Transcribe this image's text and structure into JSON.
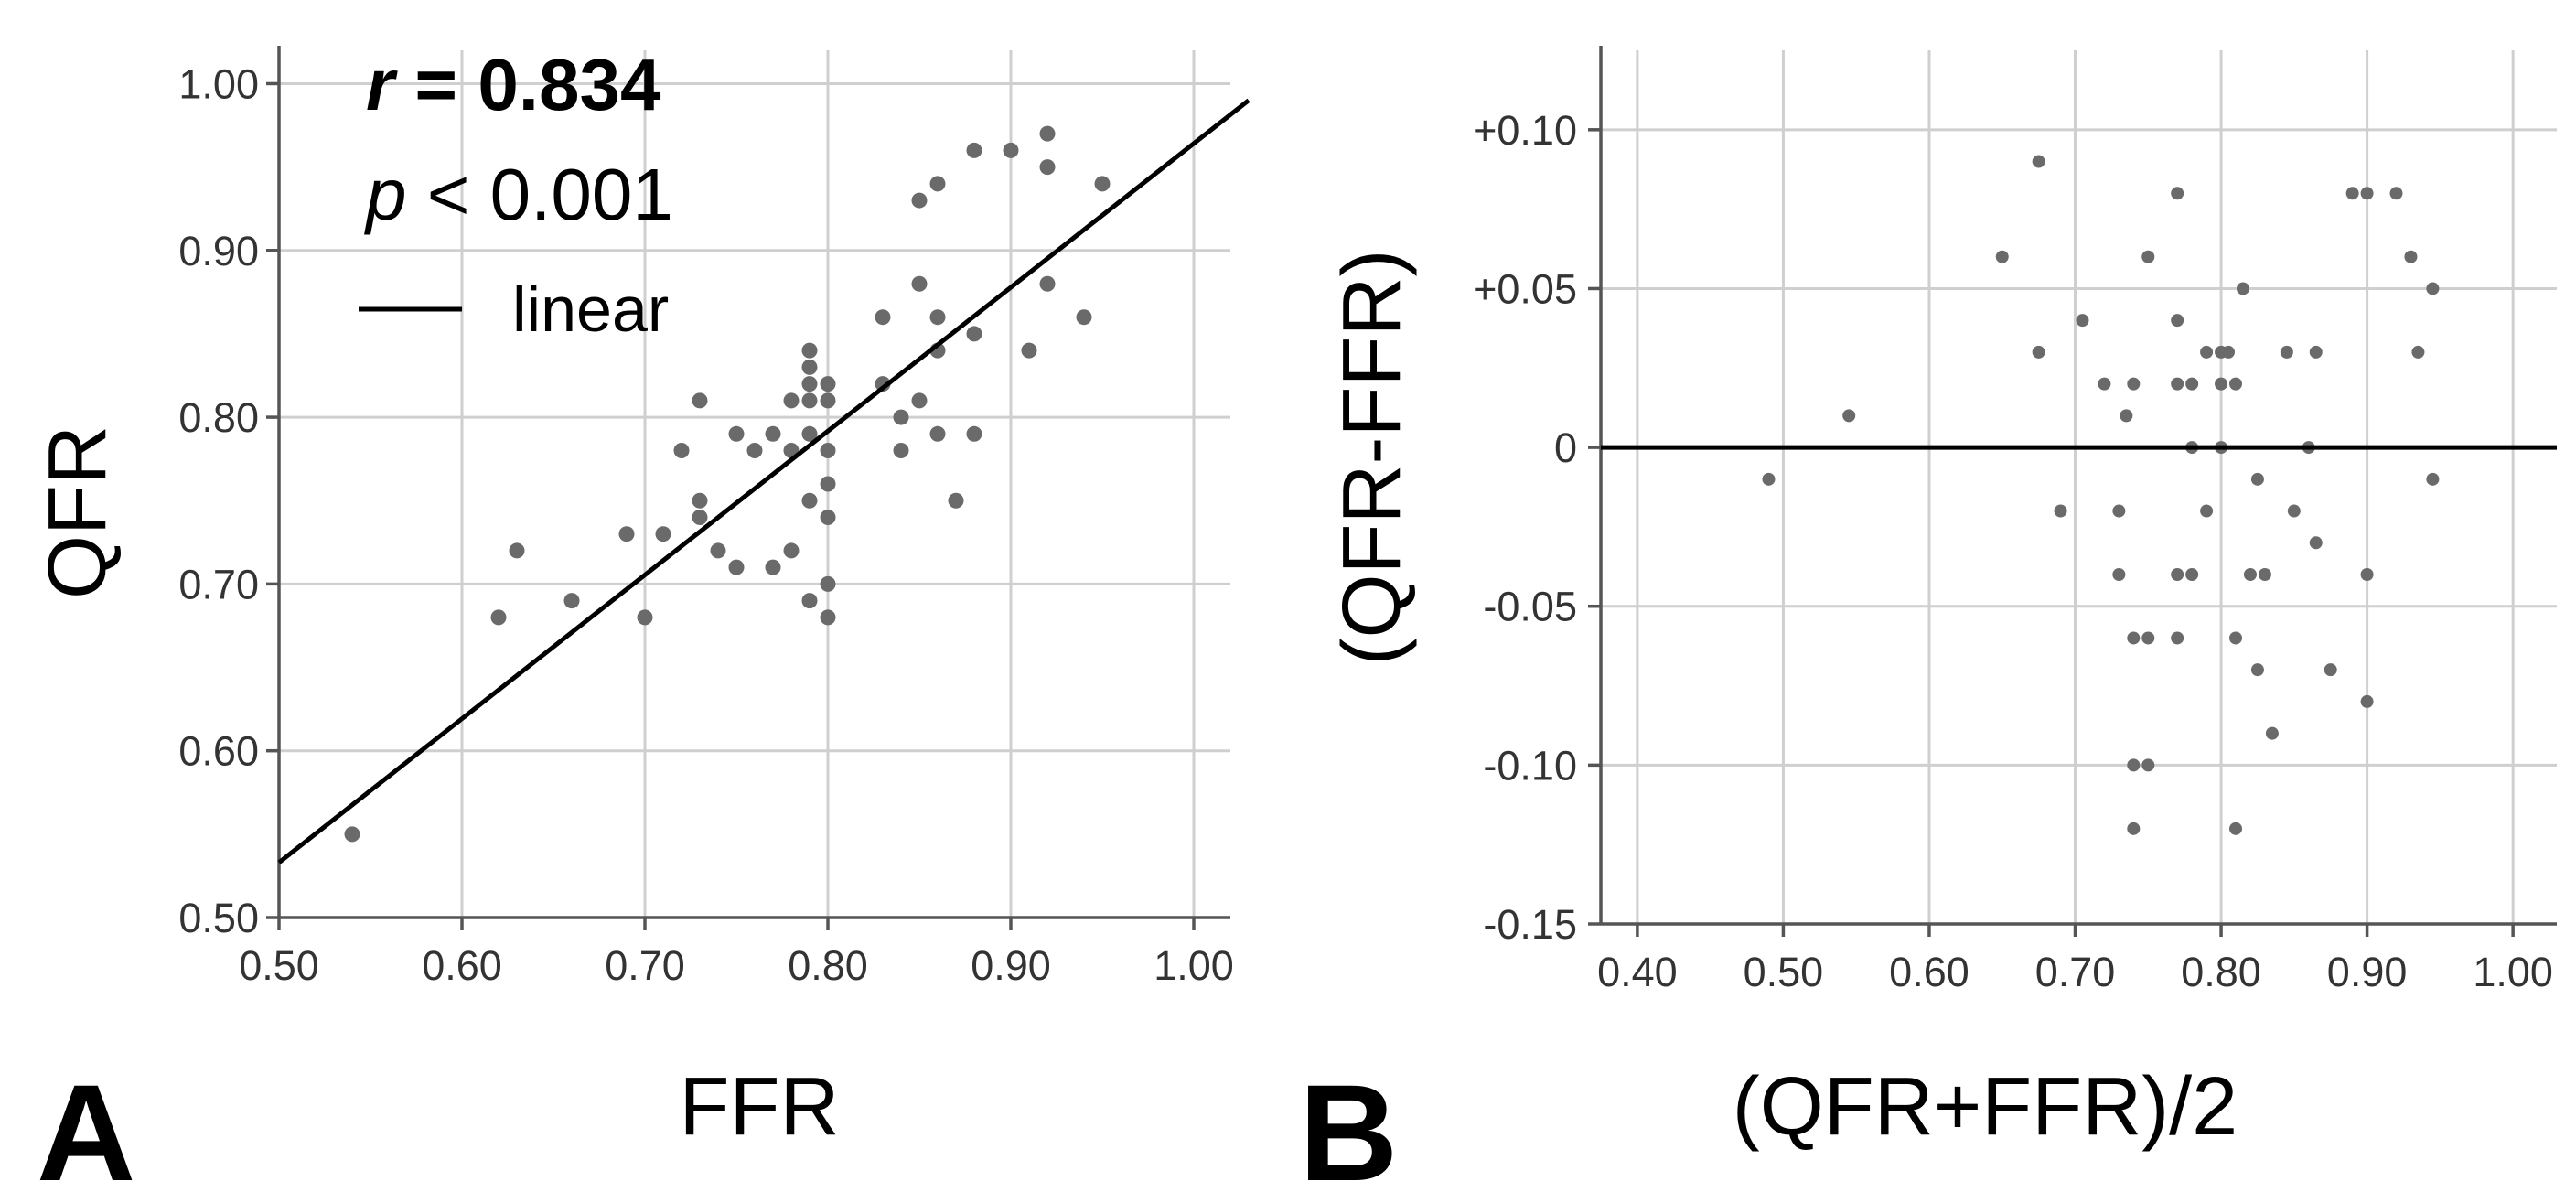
{
  "chart_data": [
    {
      "type": "scatter",
      "panel": "A",
      "xlabel": "FFR",
      "ylabel": "QFR",
      "xlim": [
        0.5,
        1.02
      ],
      "ylim": [
        0.5,
        1.02
      ],
      "x_ticks": [
        "0.50",
        "0.60",
        "0.70",
        "0.80",
        "0.90",
        "1.00"
      ],
      "y_ticks": [
        "0.50",
        "0.60",
        "0.70",
        "0.80",
        "0.90",
        "1.00"
      ],
      "grid": true,
      "annotations": {
        "r_label": "r",
        "r_value": " = 0.834",
        "p_label": "p",
        "p_value": " < 0.001",
        "legend_label": "linear"
      },
      "fit_line": {
        "x": [
          0.5,
          1.03
        ],
        "y": [
          0.533,
          0.99
        ]
      },
      "points": [
        [
          0.54,
          0.55
        ],
        [
          0.62,
          0.68
        ],
        [
          0.63,
          0.72
        ],
        [
          0.66,
          0.69
        ],
        [
          0.69,
          0.73
        ],
        [
          0.7,
          0.68
        ],
        [
          0.71,
          0.73
        ],
        [
          0.72,
          0.78
        ],
        [
          0.73,
          0.81
        ],
        [
          0.73,
          0.75
        ],
        [
          0.73,
          0.74
        ],
        [
          0.74,
          0.72
        ],
        [
          0.75,
          0.79
        ],
        [
          0.75,
          0.71
        ],
        [
          0.76,
          0.78
        ],
        [
          0.77,
          0.79
        ],
        [
          0.77,
          0.71
        ],
        [
          0.78,
          0.81
        ],
        [
          0.78,
          0.78
        ],
        [
          0.78,
          0.72
        ],
        [
          0.79,
          0.84
        ],
        [
          0.79,
          0.83
        ],
        [
          0.79,
          0.82
        ],
        [
          0.79,
          0.81
        ],
        [
          0.79,
          0.79
        ],
        [
          0.79,
          0.75
        ],
        [
          0.79,
          0.69
        ],
        [
          0.8,
          0.82
        ],
        [
          0.8,
          0.81
        ],
        [
          0.8,
          0.78
        ],
        [
          0.8,
          0.76
        ],
        [
          0.8,
          0.74
        ],
        [
          0.8,
          0.7
        ],
        [
          0.8,
          0.68
        ],
        [
          0.83,
          0.86
        ],
        [
          0.83,
          0.82
        ],
        [
          0.84,
          0.8
        ],
        [
          0.84,
          0.78
        ],
        [
          0.85,
          0.93
        ],
        [
          0.85,
          0.88
        ],
        [
          0.85,
          0.81
        ],
        [
          0.86,
          0.94
        ],
        [
          0.86,
          0.86
        ],
        [
          0.86,
          0.84
        ],
        [
          0.86,
          0.79
        ],
        [
          0.87,
          0.75
        ],
        [
          0.88,
          0.96
        ],
        [
          0.88,
          0.85
        ],
        [
          0.88,
          0.79
        ],
        [
          0.9,
          0.96
        ],
        [
          0.91,
          0.84
        ],
        [
          0.92,
          0.97
        ],
        [
          0.92,
          0.95
        ],
        [
          0.92,
          0.88
        ],
        [
          0.94,
          0.86
        ],
        [
          0.95,
          0.94
        ]
      ]
    },
    {
      "type": "scatter",
      "panel": "B",
      "xlabel": "(QFR+FFR)/2",
      "ylabel": "(QFR-FFR)",
      "xlim": [
        0.375,
        1.03
      ],
      "ylim": [
        -0.15,
        0.125
      ],
      "x_ticks": [
        "0.40",
        "0.50",
        "0.60",
        "0.70",
        "0.80",
        "0.90",
        "1.00"
      ],
      "y_ticks": [
        "+0.10",
        "+0.05",
        "0",
        "-0.05",
        "-0.10",
        "-0.15"
      ],
      "grid": true,
      "reference_line_y": 0,
      "points": [
        [
          0.49,
          -0.01
        ],
        [
          0.545,
          0.01
        ],
        [
          0.65,
          0.06
        ],
        [
          0.675,
          0.09
        ],
        [
          0.675,
          0.03
        ],
        [
          0.69,
          -0.02
        ],
        [
          0.705,
          0.04
        ],
        [
          0.72,
          0.02
        ],
        [
          0.73,
          -0.02
        ],
        [
          0.73,
          -0.04
        ],
        [
          0.735,
          0.01
        ],
        [
          0.74,
          0.02
        ],
        [
          0.74,
          -0.06
        ],
        [
          0.74,
          -0.1
        ],
        [
          0.74,
          -0.12
        ],
        [
          0.75,
          0.06
        ],
        [
          0.75,
          -0.06
        ],
        [
          0.75,
          -0.1
        ],
        [
          0.77,
          0.08
        ],
        [
          0.77,
          0.04
        ],
        [
          0.77,
          0.02
        ],
        [
          0.77,
          -0.04
        ],
        [
          0.77,
          -0.06
        ],
        [
          0.78,
          0.02
        ],
        [
          0.78,
          0.0
        ],
        [
          0.78,
          -0.04
        ],
        [
          0.79,
          -0.02
        ],
        [
          0.79,
          0.03
        ],
        [
          0.8,
          0.03
        ],
        [
          0.8,
          0.02
        ],
        [
          0.8,
          0.0
        ],
        [
          0.805,
          0.03
        ],
        [
          0.81,
          0.02
        ],
        [
          0.81,
          -0.06
        ],
        [
          0.81,
          -0.12
        ],
        [
          0.815,
          0.05
        ],
        [
          0.82,
          -0.04
        ],
        [
          0.825,
          -0.01
        ],
        [
          0.825,
          -0.07
        ],
        [
          0.83,
          -0.04
        ],
        [
          0.835,
          -0.09
        ],
        [
          0.845,
          0.03
        ],
        [
          0.85,
          -0.02
        ],
        [
          0.86,
          0.0
        ],
        [
          0.865,
          0.03
        ],
        [
          0.865,
          -0.03
        ],
        [
          0.875,
          -0.07
        ],
        [
          0.89,
          0.08
        ],
        [
          0.9,
          0.08
        ],
        [
          0.9,
          -0.04
        ],
        [
          0.9,
          -0.08
        ],
        [
          0.92,
          0.08
        ],
        [
          0.93,
          0.06
        ],
        [
          0.935,
          0.03
        ],
        [
          0.945,
          0.05
        ],
        [
          0.945,
          -0.01
        ]
      ]
    }
  ]
}
